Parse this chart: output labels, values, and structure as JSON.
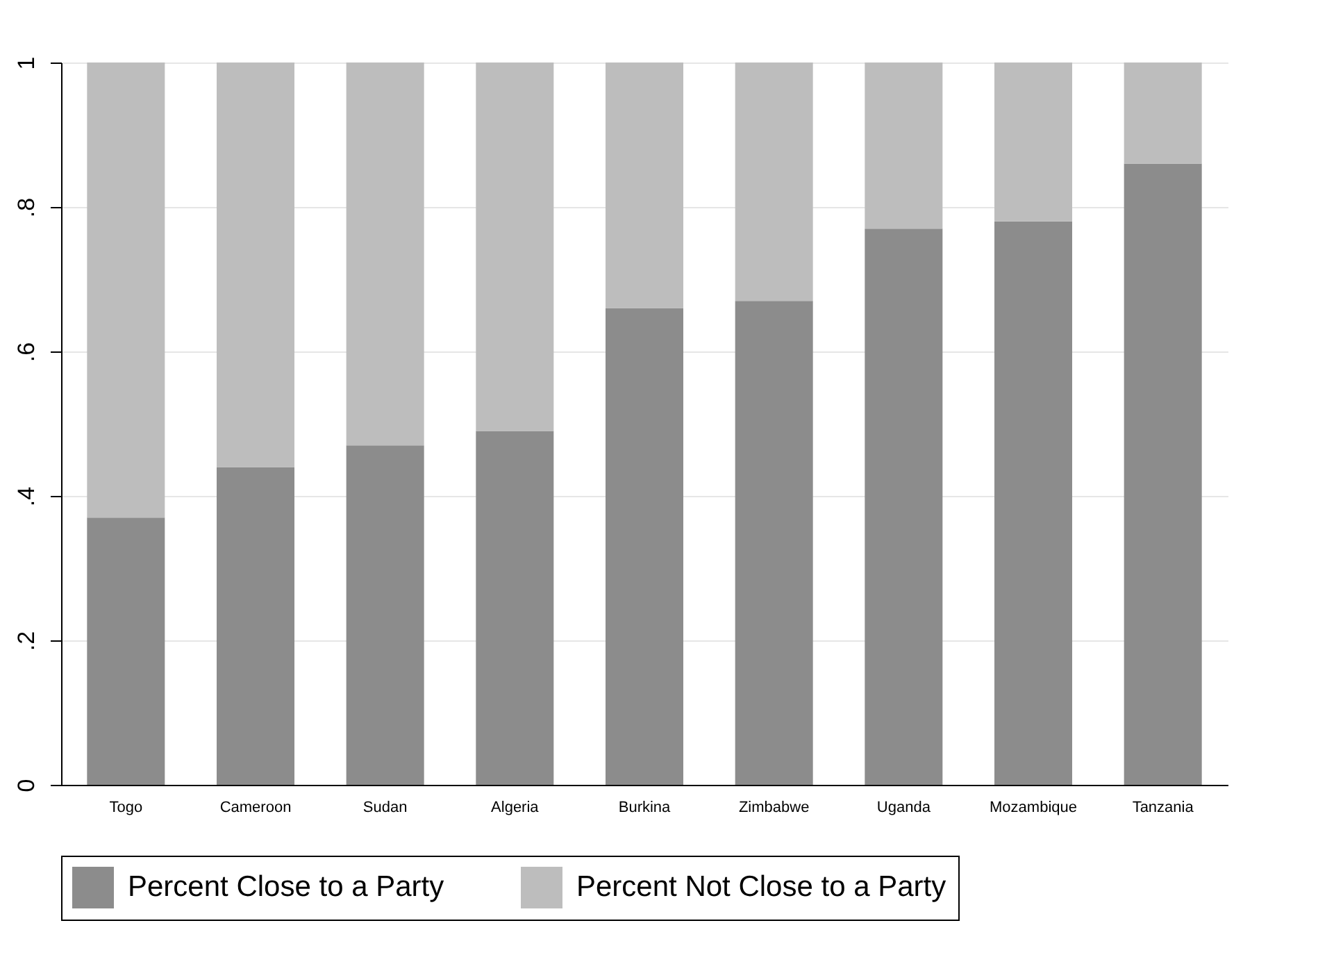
{
  "chart_data": {
    "type": "bar",
    "stacked": true,
    "categories": [
      "Togo",
      "Cameroon",
      "Sudan",
      "Algeria",
      "Burkina",
      "Zimbabwe",
      "Uganda",
      "Mozambique",
      "Tanzania"
    ],
    "series": [
      {
        "name": "Percent Close to a Party",
        "color": "#8c8c8c",
        "values": [
          0.37,
          0.44,
          0.47,
          0.49,
          0.66,
          0.67,
          0.77,
          0.78,
          0.86
        ]
      },
      {
        "name": "Percent Not Close to a Party",
        "color": "#bdbdbd",
        "values": [
          0.63,
          0.56,
          0.53,
          0.51,
          0.34,
          0.33,
          0.23,
          0.22,
          0.14
        ]
      }
    ],
    "ylim": [
      0,
      1
    ],
    "yticks": [
      0,
      {
        "value": 0.2,
        "label": ".2"
      },
      {
        "value": 0.4,
        "label": ".4"
      },
      {
        "value": 0.6,
        "label": ".6"
      },
      {
        "value": 0.8,
        "label": ".8"
      },
      1
    ],
    "grid": "y",
    "legend": "bottom"
  }
}
